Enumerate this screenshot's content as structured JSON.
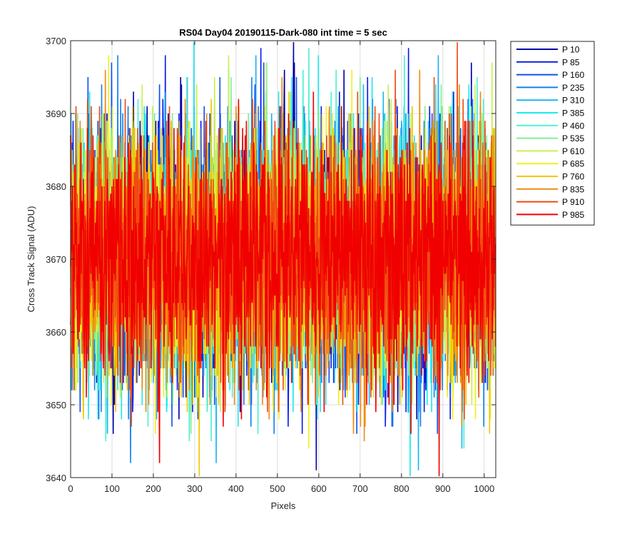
{
  "chart_data": {
    "type": "line",
    "title": "RS04 Day04 20190115-Dark-080 int time = 5 sec",
    "xlabel": "Pixels",
    "ylabel": "Cross Track Signal (ADU)",
    "xlim": [
      0,
      1028
    ],
    "ylim": [
      3640,
      3700
    ],
    "xticks": [
      "0",
      "100",
      "200",
      "300",
      "400",
      "500",
      "600",
      "700",
      "800",
      "900",
      "1000"
    ],
    "yticks": [
      "3640",
      "3650",
      "3660",
      "3670",
      "3680",
      "3690",
      "3700"
    ],
    "grid": true,
    "legend_position": "outside-top-right",
    "num_points_per_series": 1028,
    "noise_model": {
      "mean": 3670.5,
      "sigma": 8.5
    },
    "series": [
      {
        "name": "P 10",
        "color": "#0000AA",
        "seed": 11
      },
      {
        "name": "P 85",
        "color": "#0A1EE6",
        "seed": 23
      },
      {
        "name": "P 160",
        "color": "#1050F0",
        "seed": 37
      },
      {
        "name": "P 235",
        "color": "#1480F0",
        "seed": 41
      },
      {
        "name": "P 310",
        "color": "#18B4F4",
        "seed": 53
      },
      {
        "name": "P 385",
        "color": "#1EE8F0",
        "seed": 67
      },
      {
        "name": "P 460",
        "color": "#50F0D0",
        "seed": 71
      },
      {
        "name": "P 535",
        "color": "#80F090",
        "seed": 83
      },
      {
        "name": "P 610",
        "color": "#C8F050",
        "seed": 97
      },
      {
        "name": "P 685",
        "color": "#F0F020",
        "seed": 101
      },
      {
        "name": "P 760",
        "color": "#F0C800",
        "seed": 113
      },
      {
        "name": "P 835",
        "color": "#F08A10",
        "seed": 127
      },
      {
        "name": "P 910",
        "color": "#F04A10",
        "seed": 131
      },
      {
        "name": "P 985",
        "color": "#F00000",
        "seed": 139
      }
    ]
  }
}
